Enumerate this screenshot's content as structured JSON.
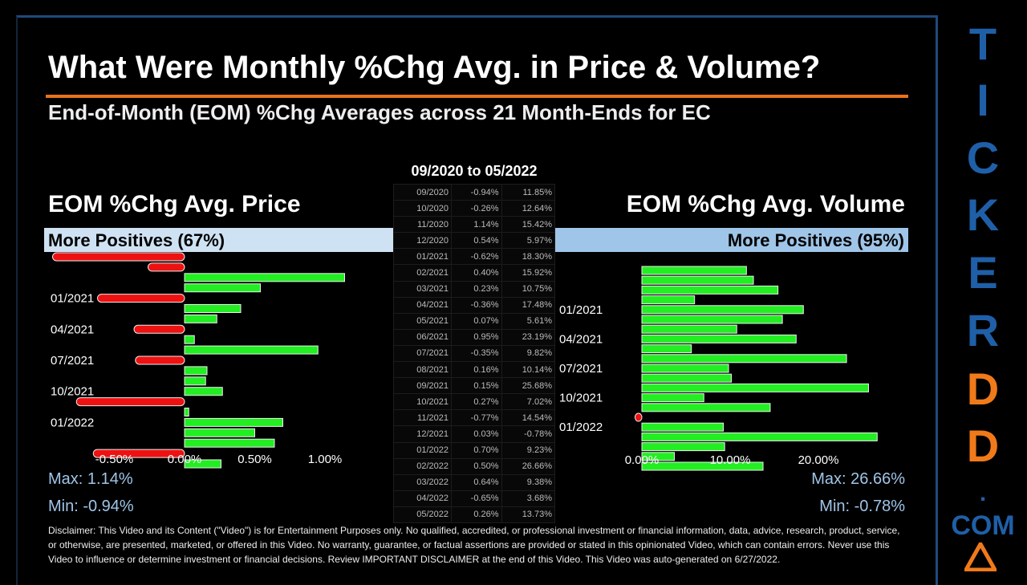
{
  "title": "What Were Monthly %Chg Avg. in Price & Volume?",
  "subtitle": "End-of-Month (EOM) %Chg Averages across 21 Month-Ends for EC",
  "price_panel": {
    "heading": "EOM %Chg Avg. Price",
    "banner": "More Positives (67%)",
    "max": "Max: 1.14%",
    "min": "Min: -0.94%"
  },
  "volume_panel": {
    "heading": "EOM %Chg Avg. Volume",
    "banner": "More Positives (95%)",
    "max": "Max: 26.66%",
    "min": "Min: -0.78%"
  },
  "table": {
    "heading": "09/2020 to 05/2022",
    "rows": [
      [
        "09/2020",
        "-0.94%",
        "11.85%"
      ],
      [
        "10/2020",
        "-0.26%",
        "12.64%"
      ],
      [
        "11/2020",
        "1.14%",
        "15.42%"
      ],
      [
        "12/2020",
        "0.54%",
        "5.97%"
      ],
      [
        "01/2021",
        "-0.62%",
        "18.30%"
      ],
      [
        "02/2021",
        "0.40%",
        "15.92%"
      ],
      [
        "03/2021",
        "0.23%",
        "10.75%"
      ],
      [
        "04/2021",
        "-0.36%",
        "17.48%"
      ],
      [
        "05/2021",
        "0.07%",
        "5.61%"
      ],
      [
        "06/2021",
        "0.95%",
        "23.19%"
      ],
      [
        "07/2021",
        "-0.35%",
        "9.82%"
      ],
      [
        "08/2021",
        "0.16%",
        "10.14%"
      ],
      [
        "09/2021",
        "0.15%",
        "25.68%"
      ],
      [
        "10/2021",
        "0.27%",
        "7.02%"
      ],
      [
        "11/2021",
        "-0.77%",
        "14.54%"
      ],
      [
        "12/2021",
        "0.03%",
        "-0.78%"
      ],
      [
        "01/2022",
        "0.70%",
        "9.23%"
      ],
      [
        "02/2022",
        "0.50%",
        "26.66%"
      ],
      [
        "03/2022",
        "0.64%",
        "9.38%"
      ],
      [
        "04/2022",
        "-0.65%",
        "3.68%"
      ],
      [
        "05/2022",
        "0.26%",
        "13.73%"
      ]
    ]
  },
  "chart_data": [
    {
      "type": "bar",
      "orientation": "horizontal",
      "title": "EOM %Chg Avg. Price",
      "categories": [
        "09/2020",
        "10/2020",
        "11/2020",
        "12/2020",
        "01/2021",
        "02/2021",
        "03/2021",
        "04/2021",
        "05/2021",
        "06/2021",
        "07/2021",
        "08/2021",
        "09/2021",
        "10/2021",
        "11/2021",
        "12/2021",
        "01/2022",
        "02/2022",
        "03/2022",
        "04/2022",
        "05/2022"
      ],
      "values": [
        -0.94,
        -0.26,
        1.14,
        0.54,
        -0.62,
        0.4,
        0.23,
        -0.36,
        0.07,
        0.95,
        -0.35,
        0.16,
        0.15,
        0.27,
        -0.77,
        0.03,
        0.7,
        0.5,
        0.64,
        -0.65,
        0.26
      ],
      "ytick_labels": [
        "01/2021",
        "04/2021",
        "07/2021",
        "10/2021",
        "01/2022"
      ],
      "xtick_labels": [
        "-0.50%",
        "0.00%",
        "0.50%",
        "1.00%"
      ],
      "xticks": [
        -0.5,
        0,
        0.5,
        1.0
      ],
      "xlim": [
        -0.95,
        1.2
      ],
      "positive_color": "#22ee22",
      "negative_color": "#ee1111"
    },
    {
      "type": "bar",
      "orientation": "horizontal",
      "title": "EOM %Chg Avg. Volume",
      "categories": [
        "09/2020",
        "10/2020",
        "11/2020",
        "12/2020",
        "01/2021",
        "02/2021",
        "03/2021",
        "04/2021",
        "05/2021",
        "06/2021",
        "07/2021",
        "08/2021",
        "09/2021",
        "10/2021",
        "11/2021",
        "12/2021",
        "01/2022",
        "02/2022",
        "03/2022",
        "04/2022",
        "05/2022"
      ],
      "values": [
        11.85,
        12.64,
        15.42,
        5.97,
        18.3,
        15.92,
        10.75,
        17.48,
        5.61,
        23.19,
        9.82,
        10.14,
        25.68,
        7.02,
        14.54,
        -0.78,
        9.23,
        26.66,
        9.38,
        3.68,
        13.73
      ],
      "ytick_labels": [
        "01/2021",
        "04/2021",
        "07/2021",
        "10/2021",
        "01/2022"
      ],
      "xtick_labels": [
        "0.00%",
        "10.00%",
        "20.00%"
      ],
      "xticks": [
        0,
        10,
        20
      ],
      "xlim": [
        -1,
        30
      ],
      "positive_color": "#22ee22",
      "negative_color": "#ee1111"
    }
  ],
  "disclaimer": "Disclaimer: This Video and its Content (\"Video\") is for Entertainment Purposes only. No qualified, accredited, or professional investment or financial information, data, advice, research, product, service, or otherwise, are presented, marketed, or offered in this Video. No warranty, guarantee, or factual assertions are provided or stated in this opinionated Video, which can contain errors. Never use this Video to influence or determine investment or financial decisions. Review IMPORTANT DISCLAIMER at the end of this Video. This Video was auto-generated on 6/27/2022.",
  "brand": {
    "letters": [
      "T",
      "I",
      "C",
      "K",
      "E",
      "R",
      "D",
      "D"
    ],
    "dot": ".",
    "suffix": "COM",
    "blue": "#1f5fa8",
    "orange": "#f07a1a"
  }
}
